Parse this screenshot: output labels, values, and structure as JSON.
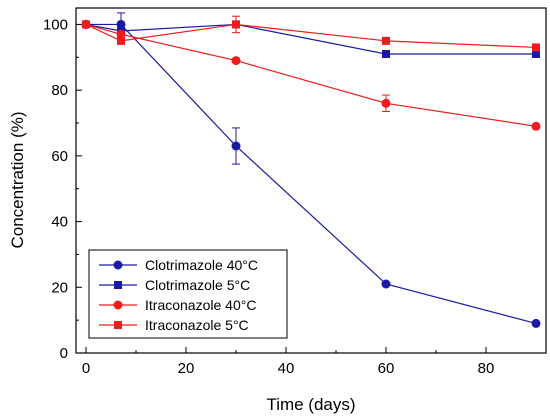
{
  "chart_data": {
    "type": "line",
    "xlabel": "Time (days)",
    "ylabel": "Concentration (%)",
    "xlim": [
      -2,
      92
    ],
    "ylim": [
      0,
      105
    ],
    "x_ticks": [
      0,
      20,
      40,
      60,
      80
    ],
    "y_ticks": [
      0,
      20,
      40,
      60,
      80,
      100
    ],
    "legend_position": "bottom-left",
    "series": [
      {
        "name": "Clotrimazole 40°C",
        "color": "#1a1aa6",
        "marker": "circle",
        "x": [
          0,
          7,
          30,
          60,
          90
        ],
        "y": [
          100,
          100,
          63,
          21,
          9
        ],
        "error": [
          0,
          3.5,
          5.5,
          0,
          0
        ]
      },
      {
        "name": "Clotrimazole 5°C",
        "color": "#1a1aa6",
        "marker": "square",
        "x": [
          0,
          7,
          30,
          60,
          90
        ],
        "y": [
          100,
          98,
          100,
          91,
          91
        ],
        "error": [
          0,
          0,
          0,
          0,
          0
        ]
      },
      {
        "name": "Itraconazole 40°C",
        "color": "#ee1c1c",
        "marker": "circle",
        "x": [
          0,
          7,
          30,
          60,
          90
        ],
        "y": [
          100,
          97,
          89,
          76,
          69
        ],
        "error": [
          0,
          0,
          0,
          2.5,
          0
        ]
      },
      {
        "name": "Itraconazole 5°C",
        "color": "#ee1c1c",
        "marker": "square",
        "x": [
          0,
          7,
          30,
          60,
          90
        ],
        "y": [
          100,
          95,
          100,
          95,
          93
        ],
        "error": [
          0,
          0,
          2.5,
          0,
          0
        ]
      }
    ]
  }
}
